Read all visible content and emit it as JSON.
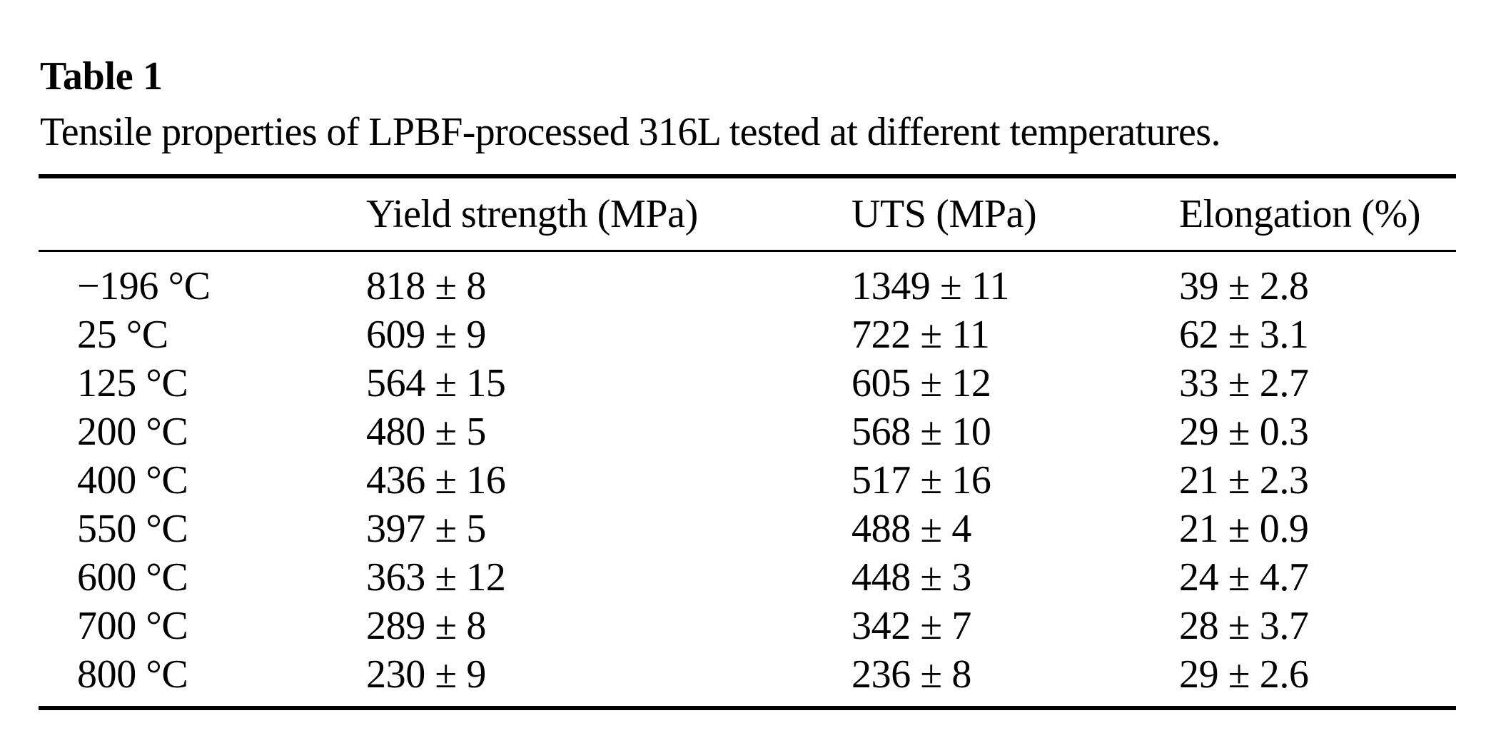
{
  "page": {
    "background_color": "#ffffff",
    "text_color": "#000000"
  },
  "table": {
    "label": "Table 1",
    "caption": "Tensile properties of LPBF-processed 316L tested at different temperatures.",
    "header": {
      "temperature": "",
      "yield_strength": "Yield strength (MPa)",
      "uts": "UTS (MPa)",
      "elongation": "Elongation (%)"
    },
    "rows": [
      {
        "temperature": "−196 °C",
        "yield_strength": "818 ± 8",
        "uts": "1349 ± 11",
        "elongation": "39 ± 2.8"
      },
      {
        "temperature": "25 °C",
        "yield_strength": "609 ± 9",
        "uts": "722 ± 11",
        "elongation": "62 ± 3.1"
      },
      {
        "temperature": "125 °C",
        "yield_strength": "564 ± 15",
        "uts": "605 ± 12",
        "elongation": "33 ± 2.7"
      },
      {
        "temperature": "200 °C",
        "yield_strength": "480 ± 5",
        "uts": "568 ± 10",
        "elongation": "29 ± 0.3"
      },
      {
        "temperature": "400 °C",
        "yield_strength": "436 ± 16",
        "uts": "517 ± 16",
        "elongation": "21 ± 2.3"
      },
      {
        "temperature": "550 °C",
        "yield_strength": "397 ± 5",
        "uts": "488 ± 4",
        "elongation": "21 ± 0.9"
      },
      {
        "temperature": "600 °C",
        "yield_strength": "363 ± 12",
        "uts": "448 ± 3",
        "elongation": "24 ± 4.7"
      },
      {
        "temperature": "700 °C",
        "yield_strength": "289 ± 8",
        "uts": "342 ± 7",
        "elongation": "28 ± 3.7"
      },
      {
        "temperature": "800 °C",
        "yield_strength": "230 ± 9",
        "uts": "236 ± 8",
        "elongation": "29 ± 2.6"
      }
    ]
  },
  "chart_data": {
    "type": "table",
    "title": "Table 1. Tensile properties of LPBF-processed 316L tested at different temperatures.",
    "categories": [
      "−196 °C",
      "25 °C",
      "125 °C",
      "200 °C",
      "400 °C",
      "550 °C",
      "600 °C",
      "700 °C",
      "800 °C"
    ],
    "series": [
      {
        "name": "Yield strength (MPa)",
        "values": [
          818,
          609,
          564,
          480,
          436,
          397,
          363,
          289,
          230
        ],
        "uncertainty": [
          8,
          9,
          15,
          5,
          16,
          5,
          12,
          8,
          9
        ]
      },
      {
        "name": "UTS (MPa)",
        "values": [
          1349,
          722,
          605,
          568,
          517,
          488,
          448,
          342,
          236
        ],
        "uncertainty": [
          11,
          11,
          12,
          10,
          16,
          4,
          3,
          7,
          8
        ]
      },
      {
        "name": "Elongation (%)",
        "values": [
          39,
          62,
          33,
          29,
          21,
          21,
          24,
          28,
          29
        ],
        "uncertainty": [
          2.8,
          3.1,
          2.7,
          0.3,
          2.3,
          0.9,
          4.7,
          3.7,
          2.6
        ]
      }
    ]
  }
}
